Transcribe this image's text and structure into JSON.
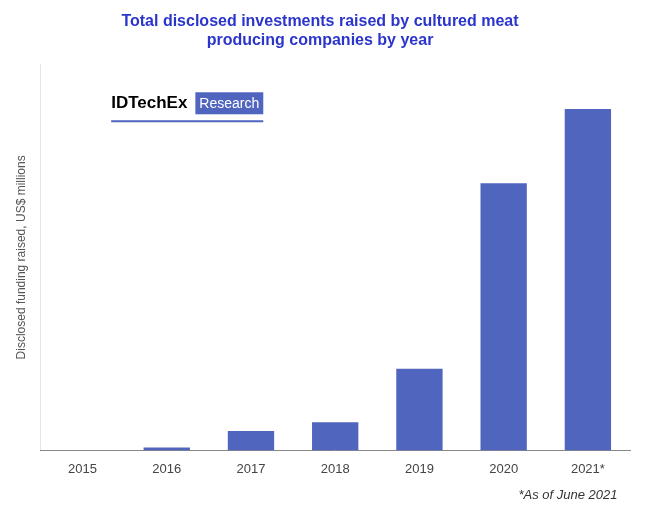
{
  "chart_data": {
    "type": "bar",
    "title": [
      "Total disclosed investments raised by cultured meat",
      "producing companies by year"
    ],
    "y_label": "Disclosed funding raised, US$ millions",
    "categories": [
      "2015",
      "2016",
      "2017",
      "2018",
      "2019",
      "2020",
      "2021*"
    ],
    "values": [
      0,
      2,
      13,
      19,
      55,
      180,
      230
    ],
    "color": "#5065be",
    "ylim": [
      0,
      260
    ],
    "grid": false,
    "tick_labels": "x",
    "annotations": [
      "IDTechEx",
      "Research",
      "*As of June 2021"
    ]
  }
}
